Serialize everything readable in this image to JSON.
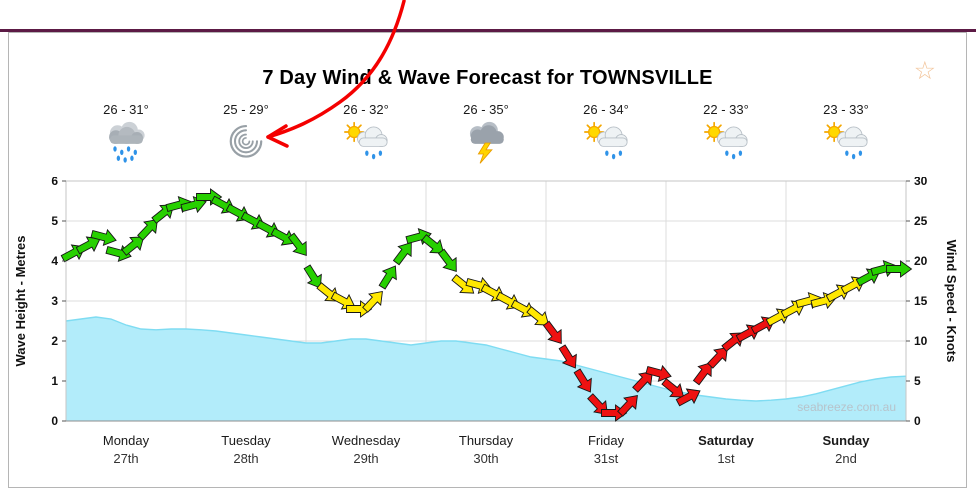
{
  "page": {
    "title": "7 Day Wind & Wave Forecast for TOWNSVILLE",
    "watermark": "seabreeze.com.au"
  },
  "icons": {
    "favorite_star": "☆"
  },
  "colors": {
    "top_bar": "#5c1a45",
    "panel_border": "#b5b5b5",
    "star": "#f2c49a",
    "annotation_red": "#f40000"
  },
  "days": [
    {
      "name": "Monday",
      "date": "27th",
      "temp_range": "26 - 31°",
      "icon": "rain",
      "bold": false
    },
    {
      "name": "Tuesday",
      "date": "28th",
      "temp_range": "25 - 29°",
      "icon": "cyclone",
      "bold": false
    },
    {
      "name": "Wednesday",
      "date": "29th",
      "temp_range": "26 - 32°",
      "icon": "sun-cloud-rain",
      "bold": false
    },
    {
      "name": "Thursday",
      "date": "30th",
      "temp_range": "26 - 35°",
      "icon": "storm",
      "bold": false
    },
    {
      "name": "Friday",
      "date": "31st",
      "temp_range": "26 - 34°",
      "icon": "sun-cloud-rain",
      "bold": false
    },
    {
      "name": "Saturday",
      "date": "1st",
      "temp_range": "22 - 33°",
      "icon": "sun-cloud-rain",
      "bold": true
    },
    {
      "name": "Sunday",
      "date": "2nd",
      "temp_range": "23 - 33°",
      "icon": "sun-cloud-rain",
      "bold": true
    }
  ],
  "chart_data": {
    "type": "area+wind-arrows",
    "title": "7 Day Wind & Wave Forecast for TOWNSVILLE",
    "x_categories": [
      "Monday 27th",
      "Tuesday 28th",
      "Wednesday 29th",
      "Thursday 30th",
      "Friday 31st",
      "Saturday 1st",
      "Sunday 2nd"
    ],
    "left_axis": {
      "label": "Wave Height - Metres",
      "min": 0,
      "max": 6,
      "ticks": [
        0,
        1,
        2,
        3,
        4,
        5,
        6
      ]
    },
    "right_axis": {
      "label": "Wind Speed - Knots",
      "min": 0,
      "max": 30,
      "ticks": [
        0,
        5,
        10,
        15,
        20,
        25,
        30
      ]
    },
    "grid": true,
    "wind_points_per_day": 8,
    "wind_speed_knots": [
      21,
      22,
      23,
      21,
      22,
      24,
      26,
      27,
      27,
      28,
      27,
      26,
      25,
      24,
      23,
      22,
      18,
      16,
      15,
      14,
      15,
      18,
      21,
      23,
      22,
      20,
      17,
      17,
      16,
      15,
      14,
      13,
      11,
      8,
      5,
      2,
      1,
      2,
      5,
      6,
      4,
      3,
      6,
      8,
      10,
      11,
      12,
      13,
      14,
      15,
      15,
      16,
      17,
      18,
      19,
      19
    ],
    "wave_height_m": [
      2.5,
      2.55,
      2.6,
      2.55,
      2.4,
      2.3,
      2.28,
      2.3,
      2.3,
      2.28,
      2.25,
      2.2,
      2.15,
      2.1,
      2.05,
      2.0,
      1.95,
      1.95,
      2.0,
      2.05,
      2.05,
      2.0,
      1.95,
      1.9,
      1.95,
      2.0,
      2.0,
      1.95,
      1.9,
      1.8,
      1.7,
      1.6,
      1.55,
      1.5,
      1.4,
      1.3,
      1.2,
      1.1,
      1.0,
      0.9,
      0.8,
      0.72,
      0.65,
      0.6,
      0.55,
      0.52,
      0.5,
      0.52,
      0.55,
      0.6,
      0.68,
      0.78,
      0.88,
      0.98,
      1.05,
      1.1,
      1.12
    ],
    "wind_colors": {
      "red": "#ee1111",
      "yellow": "#ffe800",
      "green": "#27d000"
    },
    "wind_thresholds_knots": {
      "yellow_min": 12.5,
      "green_min": 17.8
    },
    "wave_fill": "#b2ecfa",
    "wave_stroke": "#7fdcf2",
    "legend_position": "none"
  },
  "annotation": {
    "color": "#f40000",
    "target": "cyclone-icon-tuesday"
  }
}
